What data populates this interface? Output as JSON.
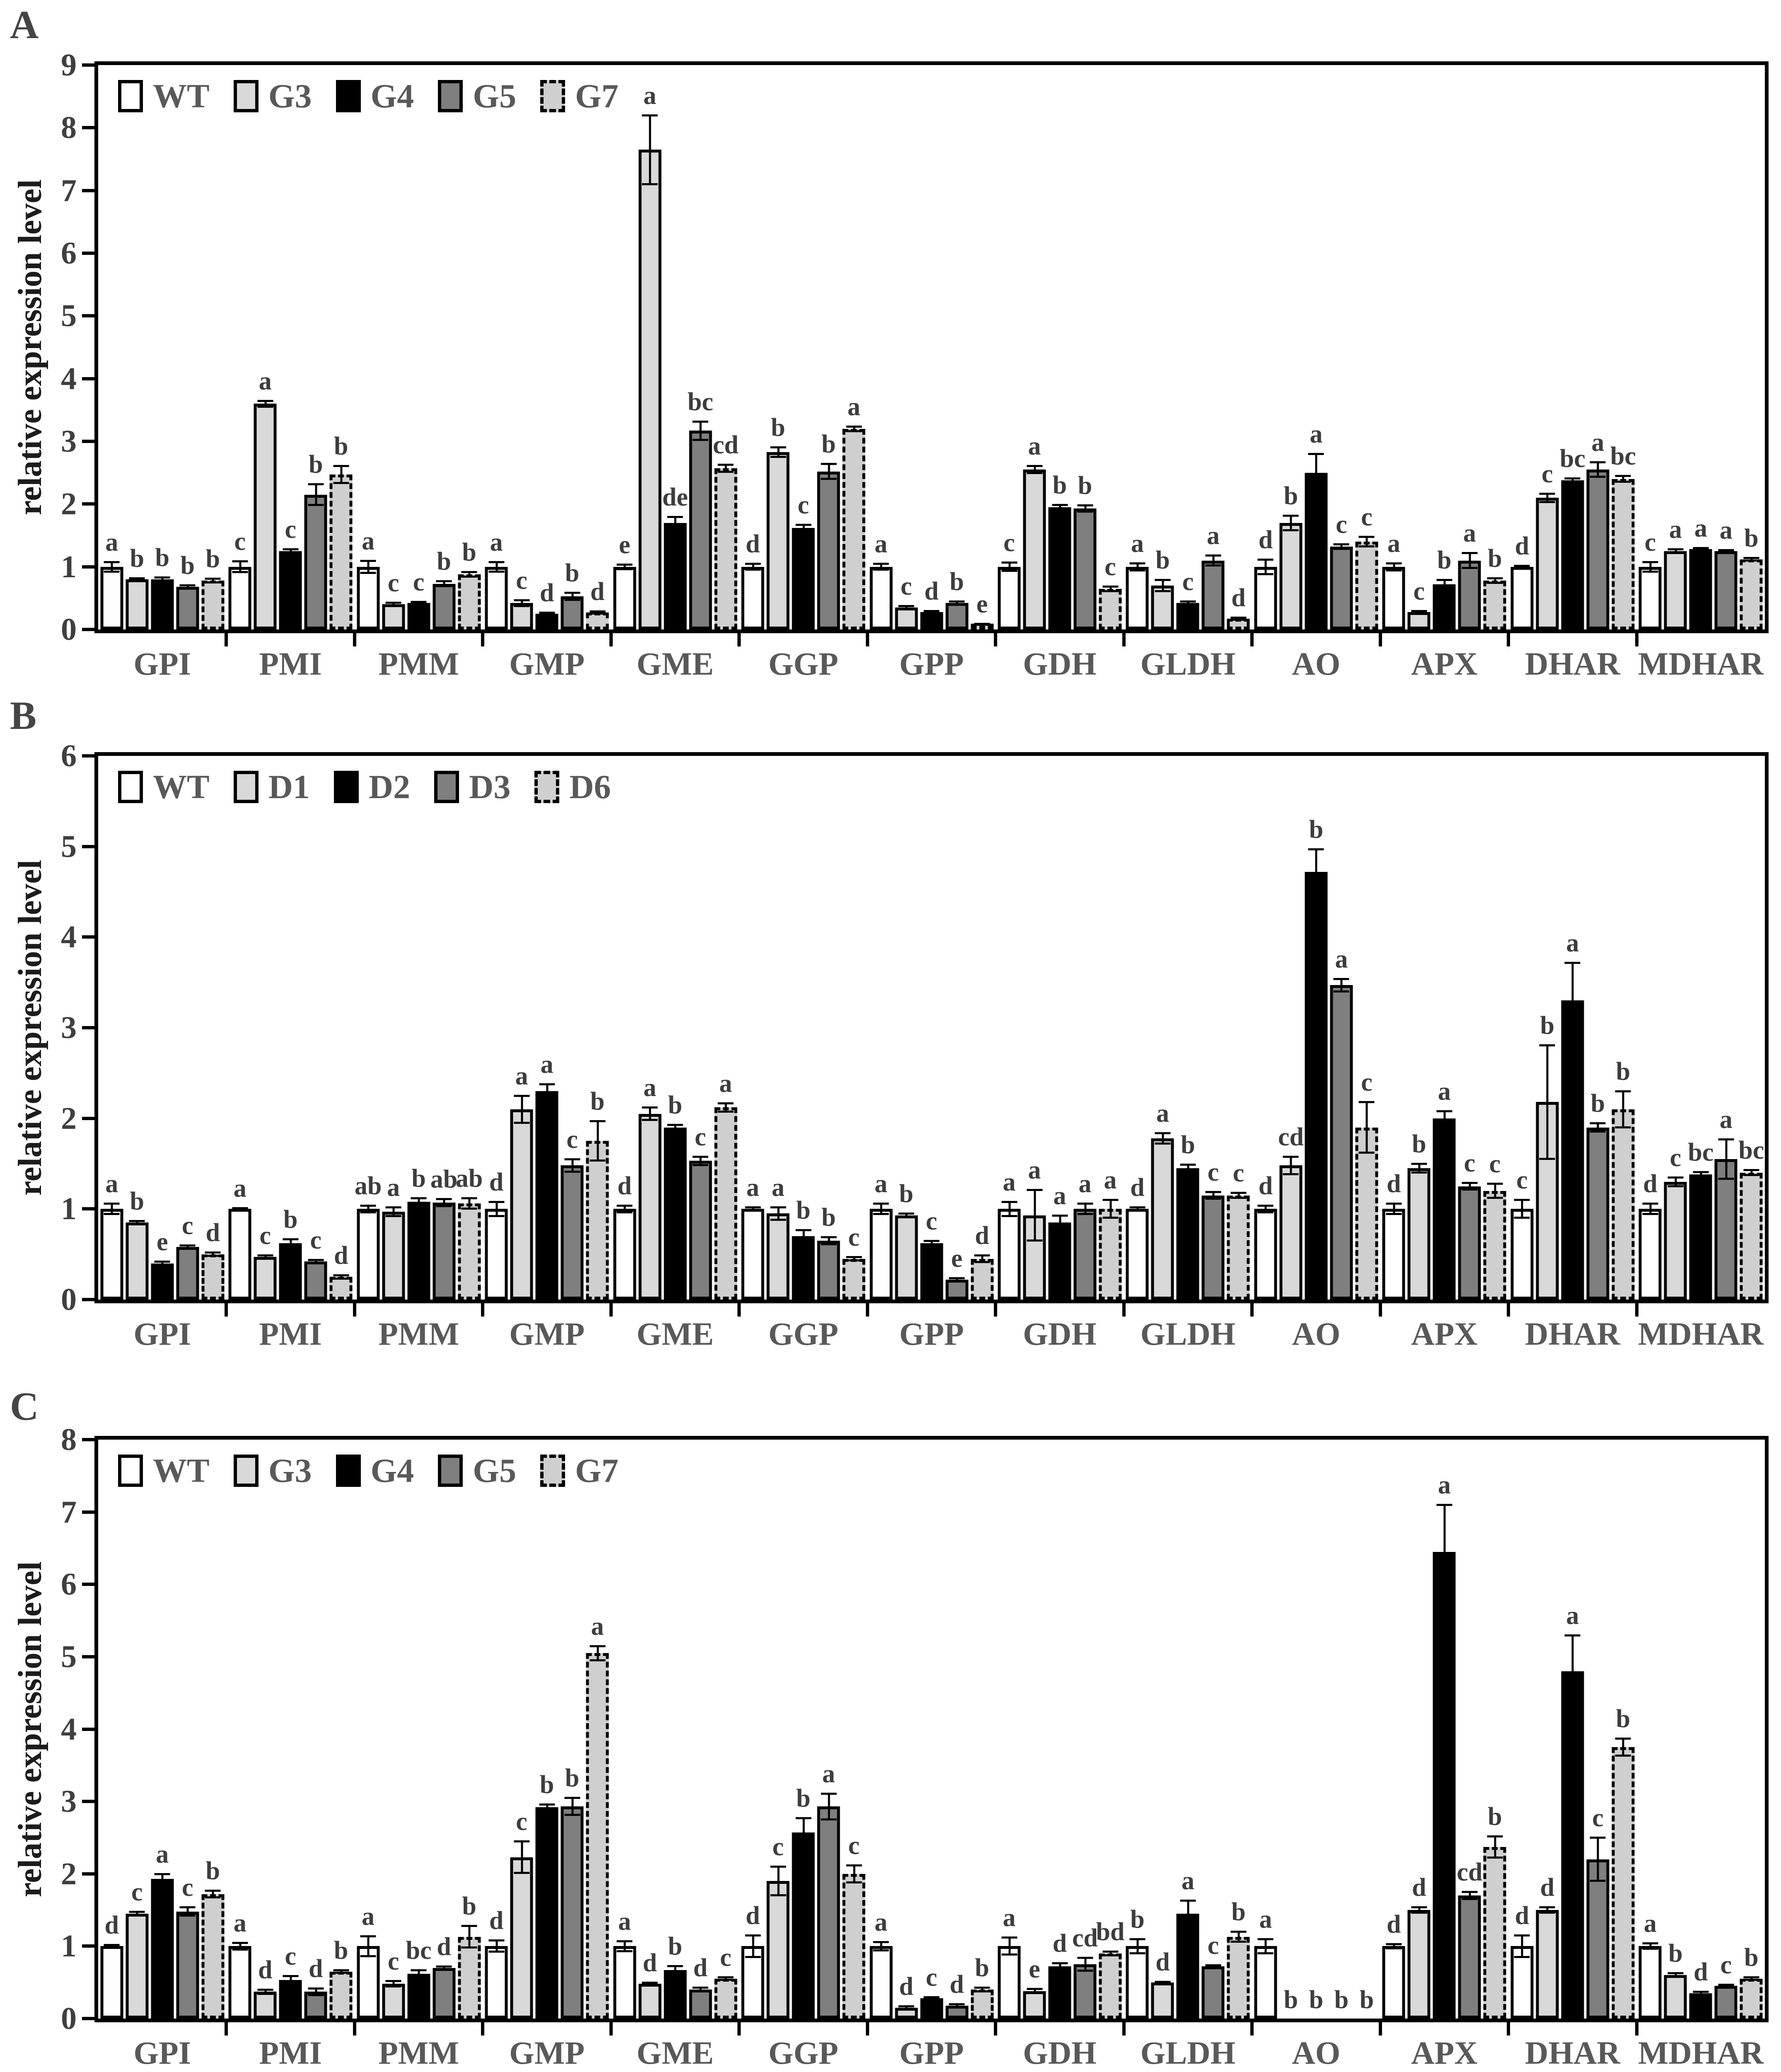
{
  "figure": {
    "ylabel": "relative expression level",
    "panel_letters": [
      "A",
      "B",
      "C"
    ]
  },
  "chart_data": [
    {
      "type": "bar",
      "panel": "A",
      "title": "",
      "xlabel": "",
      "ylabel": "relative expression level",
      "ylim": [
        0,
        9
      ],
      "yticks": [
        0,
        1,
        2,
        3,
        4,
        5,
        6,
        7,
        8,
        9
      ],
      "grid": false,
      "legend_position": "top-left-inside",
      "categories": [
        "GPI",
        "PMI",
        "PMM",
        "GMP",
        "GME",
        "GGP",
        "GPP",
        "GDH",
        "GLDH",
        "AO",
        "APX",
        "DHAR",
        "MDHAR"
      ],
      "series": [
        {
          "name": "WT",
          "fill": "#ffffff",
          "border_style": "solid",
          "values": [
            1.0,
            1.0,
            1.0,
            1.0,
            1.0,
            1.0,
            1.0,
            1.0,
            1.0,
            1.0,
            1.0,
            1.0,
            1.0
          ],
          "errors": [
            0.08,
            0.09,
            0.1,
            0.08,
            0.04,
            0.05,
            0.05,
            0.07,
            0.06,
            0.12,
            0.06,
            0.02,
            0.08
          ],
          "letters": [
            "a",
            "c",
            "a",
            "a",
            "e",
            "d",
            "a",
            "c",
            "a",
            "d",
            "a",
            "d",
            "c"
          ]
        },
        {
          "name": "G3",
          "fill": "#d9d9d9",
          "border_style": "solid",
          "values": [
            0.8,
            3.6,
            0.4,
            0.42,
            7.65,
            2.83,
            0.35,
            2.55,
            0.7,
            1.7,
            0.28,
            2.1,
            1.25
          ],
          "errors": [
            0.02,
            0.05,
            0.03,
            0.05,
            0.55,
            0.08,
            0.03,
            0.06,
            0.09,
            0.12,
            0.02,
            0.07,
            0.03
          ],
          "letters": [
            "b",
            "a",
            "c",
            "c",
            "a",
            "b",
            "c",
            "a",
            "b",
            "b",
            "c",
            "c",
            "a"
          ]
        },
        {
          "name": "G4",
          "fill": "#000000",
          "border_style": "solid",
          "values": [
            0.8,
            1.25,
            0.42,
            0.25,
            1.7,
            1.62,
            0.28,
            1.95,
            0.42,
            2.5,
            0.72,
            2.38,
            1.28
          ],
          "errors": [
            0.03,
            0.03,
            0.02,
            0.02,
            0.1,
            0.05,
            0.02,
            0.04,
            0.03,
            0.3,
            0.07,
            0.03,
            0.02
          ],
          "letters": [
            "b",
            "c",
            "c",
            "d",
            "de",
            "c",
            "d",
            "b",
            "c",
            "a",
            "b",
            "bc",
            "a"
          ]
        },
        {
          "name": "G5",
          "fill": "#7f7f7f",
          "border_style": "solid",
          "values": [
            0.68,
            2.15,
            0.73,
            0.53,
            3.17,
            2.52,
            0.42,
            1.93,
            1.1,
            1.32,
            1.1,
            2.55,
            1.25
          ],
          "errors": [
            0.03,
            0.17,
            0.04,
            0.06,
            0.15,
            0.12,
            0.03,
            0.05,
            0.08,
            0.04,
            0.12,
            0.12,
            0.02
          ],
          "letters": [
            "b",
            "b",
            "b",
            "b",
            "bc",
            "b",
            "b",
            "b",
            "a",
            "c",
            "a",
            "a",
            "a"
          ]
        },
        {
          "name": "G7",
          "fill": "#cfcfcf",
          "border_style": "dashed",
          "values": [
            0.78,
            2.47,
            0.88,
            0.27,
            2.57,
            3.2,
            0.08,
            0.65,
            0.17,
            1.4,
            0.78,
            2.4,
            1.12
          ],
          "errors": [
            0.03,
            0.14,
            0.04,
            0.02,
            0.06,
            0.04,
            0.01,
            0.04,
            0.02,
            0.08,
            0.04,
            0.05,
            0.02
          ],
          "letters": [
            "b",
            "b",
            "b",
            "d",
            "cd",
            "a",
            "e",
            "c",
            "d",
            "c",
            "b",
            "bc",
            "b"
          ]
        }
      ]
    },
    {
      "type": "bar",
      "panel": "B",
      "title": "",
      "xlabel": "",
      "ylabel": "relative expression level",
      "ylim": [
        0,
        6
      ],
      "yticks": [
        0,
        1,
        2,
        3,
        4,
        5,
        6
      ],
      "grid": false,
      "legend_position": "top-left-inside",
      "categories": [
        "GPI",
        "PMI",
        "PMM",
        "GMP",
        "GME",
        "GGP",
        "GPP",
        "GDH",
        "GLDH",
        "AO",
        "APX",
        "DHAR",
        "MDHAR"
      ],
      "series": [
        {
          "name": "WT",
          "fill": "#ffffff",
          "border_style": "solid",
          "values": [
            1.0,
            1.0,
            1.0,
            1.0,
            1.0,
            1.0,
            1.0,
            1.0,
            1.0,
            1.0,
            1.0,
            1.0,
            1.0
          ],
          "errors": [
            0.06,
            0.01,
            0.04,
            0.08,
            0.04,
            0.02,
            0.06,
            0.08,
            0.02,
            0.04,
            0.06,
            0.1,
            0.06
          ],
          "letters": [
            "a",
            "a",
            "ab",
            "d",
            "d",
            "a",
            "a",
            "a",
            "d",
            "d",
            "d",
            "c",
            "d"
          ]
        },
        {
          "name": "D1",
          "fill": "#d9d9d9",
          "border_style": "solid",
          "values": [
            0.85,
            0.47,
            0.97,
            2.1,
            2.05,
            0.95,
            0.93,
            0.93,
            1.78,
            1.48,
            1.45,
            2.18,
            1.3
          ],
          "errors": [
            0.02,
            0.02,
            0.05,
            0.15,
            0.07,
            0.07,
            0.02,
            0.28,
            0.06,
            0.1,
            0.05,
            0.63,
            0.05
          ],
          "letters": [
            "b",
            "c",
            "a",
            "a",
            "a",
            "a",
            "b",
            "a",
            "a",
            "cd",
            "b",
            "b",
            "c"
          ]
        },
        {
          "name": "D2",
          "fill": "#000000",
          "border_style": "solid",
          "values": [
            0.4,
            0.62,
            1.08,
            2.3,
            1.9,
            0.7,
            0.62,
            0.85,
            1.45,
            4.72,
            2.0,
            3.3,
            1.38
          ],
          "errors": [
            0.02,
            0.05,
            0.04,
            0.08,
            0.03,
            0.07,
            0.03,
            0.08,
            0.04,
            0.25,
            0.08,
            0.42,
            0.03
          ],
          "letters": [
            "e",
            "b",
            "b",
            "a",
            "b",
            "b",
            "c",
            "a",
            "b",
            "b",
            "a",
            "a",
            "bc"
          ]
        },
        {
          "name": "D3",
          "fill": "#7f7f7f",
          "border_style": "solid",
          "values": [
            0.58,
            0.42,
            1.07,
            1.48,
            1.53,
            0.65,
            0.22,
            1.0,
            1.15,
            3.47,
            1.25,
            1.9,
            1.55
          ],
          "errors": [
            0.02,
            0.02,
            0.04,
            0.07,
            0.05,
            0.04,
            0.02,
            0.06,
            0.04,
            0.07,
            0.04,
            0.05,
            0.22
          ],
          "letters": [
            "c",
            "c",
            "ab",
            "c",
            "c",
            "b",
            "e",
            "a",
            "c",
            "a",
            "c",
            "b",
            "a"
          ]
        },
        {
          "name": "D6",
          "fill": "#cfcfcf",
          "border_style": "dashed",
          "values": [
            0.5,
            0.25,
            1.06,
            1.75,
            2.12,
            0.45,
            0.45,
            1.0,
            1.15,
            1.9,
            1.2,
            2.1,
            1.4
          ],
          "errors": [
            0.02,
            0.02,
            0.06,
            0.22,
            0.05,
            0.02,
            0.04,
            0.1,
            0.03,
            0.28,
            0.08,
            0.2,
            0.03
          ],
          "letters": [
            "d",
            "d",
            "ab",
            "b",
            "a",
            "c",
            "d",
            "a",
            "c",
            "c",
            "c",
            "b",
            "bc"
          ]
        }
      ]
    },
    {
      "type": "bar",
      "panel": "C",
      "title": "",
      "xlabel": "",
      "ylabel": "relative expression level",
      "ylim": [
        0,
        8
      ],
      "yticks": [
        0,
        1,
        2,
        3,
        4,
        5,
        6,
        7,
        8
      ],
      "grid": false,
      "legend_position": "top-left-inside",
      "categories": [
        "GPI",
        "PMI",
        "PMM",
        "GMP",
        "GME",
        "GGP",
        "GPP",
        "GDH",
        "GLDH",
        "AO",
        "APX",
        "DHAR",
        "MDHAR"
      ],
      "series": [
        {
          "name": "WT",
          "fill": "#ffffff",
          "border_style": "solid",
          "values": [
            1.0,
            1.0,
            1.0,
            1.0,
            1.0,
            1.0,
            1.0,
            1.0,
            1.0,
            1.0,
            1.0,
            1.0,
            1.0
          ],
          "errors": [
            0.02,
            0.05,
            0.14,
            0.08,
            0.07,
            0.15,
            0.06,
            0.12,
            0.1,
            0.1,
            0.03,
            0.15,
            0.04
          ],
          "letters": [
            "d",
            "a",
            "a",
            "d",
            "a",
            "d",
            "a",
            "a",
            "b",
            "a",
            "d",
            "d",
            "a"
          ]
        },
        {
          "name": "G3",
          "fill": "#d9d9d9",
          "border_style": "solid",
          "values": [
            1.45,
            0.37,
            0.48,
            2.23,
            0.48,
            1.9,
            0.15,
            0.38,
            0.5,
            0,
            1.5,
            1.5,
            0.6
          ],
          "errors": [
            0.03,
            0.03,
            0.04,
            0.22,
            0.02,
            0.2,
            0.02,
            0.03,
            0.01,
            0,
            0.04,
            0.04,
            0.03
          ],
          "letters": [
            "c",
            "d",
            "c",
            "c",
            "d",
            "c",
            "d",
            "e",
            "d",
            "b",
            "d",
            "d",
            "b"
          ]
        },
        {
          "name": "G4",
          "fill": "#000000",
          "border_style": "solid",
          "values": [
            1.93,
            0.53,
            0.62,
            2.92,
            0.67,
            2.57,
            0.28,
            0.72,
            1.45,
            0,
            6.45,
            4.8,
            0.35
          ],
          "errors": [
            0.07,
            0.06,
            0.05,
            0.04,
            0.06,
            0.2,
            0.02,
            0.05,
            0.18,
            0,
            0.65,
            0.5,
            0.02
          ],
          "letters": [
            "a",
            "c",
            "bc",
            "b",
            "b",
            "b",
            "c",
            "d",
            "a",
            "b",
            "a",
            "a",
            "d"
          ]
        },
        {
          "name": "G5",
          "fill": "#7f7f7f",
          "border_style": "solid",
          "values": [
            1.48,
            0.37,
            0.7,
            2.93,
            0.4,
            2.93,
            0.18,
            0.75,
            0.72,
            0,
            1.7,
            2.2,
            0.45
          ],
          "errors": [
            0.06,
            0.05,
            0.02,
            0.12,
            0.03,
            0.18,
            0.02,
            0.09,
            0.02,
            0,
            0.05,
            0.3,
            0.02
          ],
          "letters": [
            "c",
            "d",
            "d",
            "b",
            "d",
            "a",
            "d",
            "cd",
            "c",
            "b",
            "cd",
            "c",
            "c"
          ]
        },
        {
          "name": "G7",
          "fill": "#cfcfcf",
          "border_style": "dashed",
          "values": [
            1.72,
            0.65,
            1.13,
            5.05,
            0.55,
            2.0,
            0.4,
            0.9,
            1.13,
            0,
            2.37,
            3.75,
            0.55
          ],
          "errors": [
            0.05,
            0.02,
            0.15,
            0.1,
            0.02,
            0.12,
            0.03,
            0.03,
            0.07,
            0,
            0.15,
            0.12,
            0.02
          ],
          "letters": [
            "b",
            "b",
            "b",
            "a",
            "c",
            "c",
            "b",
            "bd",
            "b",
            "b",
            "b",
            "b",
            "b"
          ]
        }
      ]
    }
  ]
}
